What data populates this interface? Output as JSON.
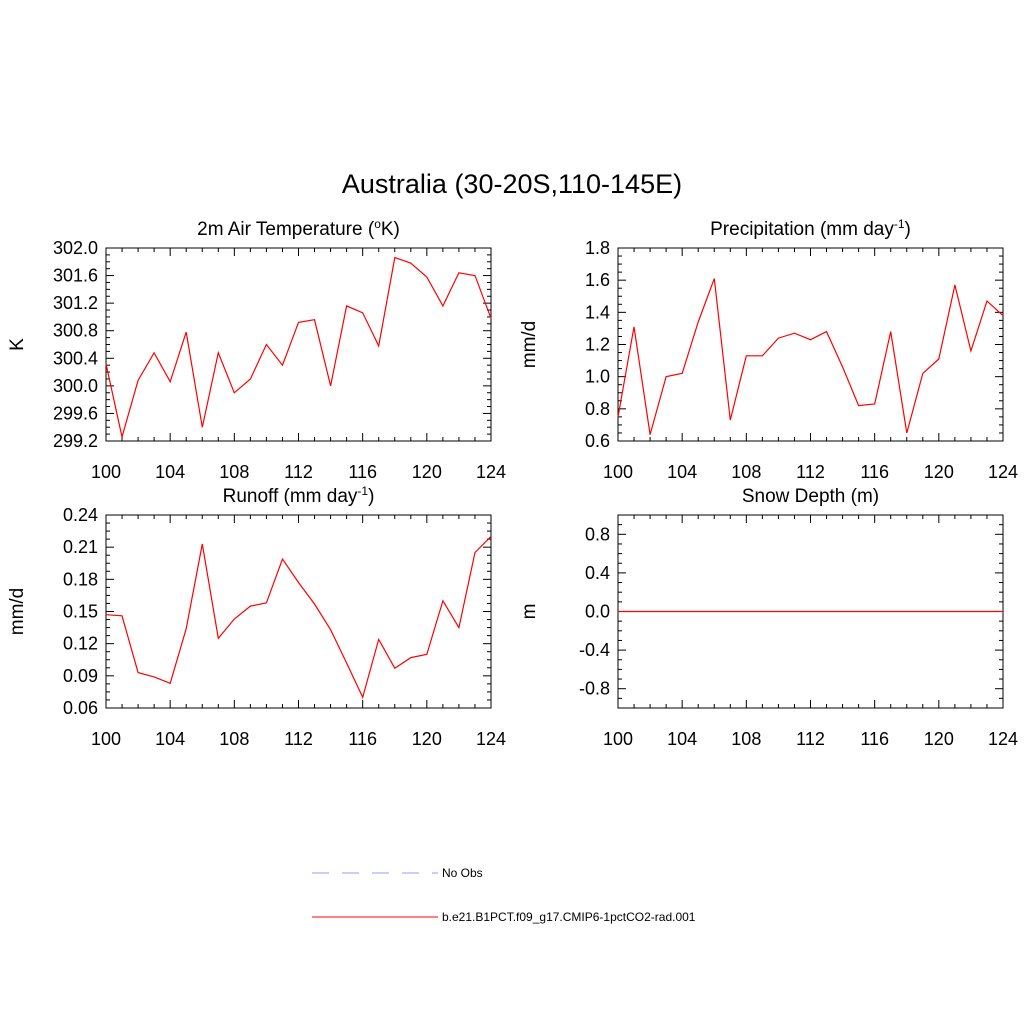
{
  "title": "Australia (30-20S,110-145E)",
  "chart_data": [
    {
      "type": "line",
      "title": "2m Air Temperature (",
      "title_sup": "o",
      "title_suffix": "K)",
      "ylabel": "K",
      "xlim": [
        100,
        124
      ],
      "ylim": [
        299.2,
        302.0
      ],
      "xticks": [
        100,
        104,
        108,
        112,
        116,
        120,
        124
      ],
      "yticks": [
        "299.2",
        "299.6",
        "300.0",
        "300.4",
        "300.8",
        "301.2",
        "301.6",
        "302.0"
      ],
      "yticks_values": [
        299.2,
        299.6,
        300.0,
        300.4,
        300.8,
        301.2,
        301.6,
        302.0
      ],
      "series": [
        {
          "color": "#ff0000",
          "x": [
            100,
            101,
            102,
            103,
            104,
            105,
            106,
            107,
            108,
            109,
            110,
            111,
            112,
            113,
            114,
            115,
            116,
            117,
            118,
            119,
            120,
            121,
            122,
            123,
            124
          ],
          "y": [
            300.32,
            299.26,
            300.08,
            300.48,
            300.06,
            300.78,
            299.4,
            300.48,
            299.9,
            300.1,
            300.6,
            300.3,
            300.92,
            300.96,
            300.0,
            301.16,
            301.06,
            300.58,
            301.86,
            301.78,
            301.58,
            301.16,
            301.64,
            301.6,
            300.98
          ]
        }
      ]
    },
    {
      "type": "line",
      "title": "Precipitation (mm day",
      "title_sup": "-1",
      "title_suffix": ")",
      "ylabel": "mm/d",
      "xlim": [
        100,
        124
      ],
      "ylim": [
        0.6,
        1.8
      ],
      "xticks": [
        100,
        104,
        108,
        112,
        116,
        120,
        124
      ],
      "yticks": [
        "0.6",
        "0.8",
        "1.0",
        "1.2",
        "1.4",
        "1.6",
        "1.8"
      ],
      "yticks_values": [
        0.6,
        0.8,
        1.0,
        1.2,
        1.4,
        1.6,
        1.8
      ],
      "series": [
        {
          "color": "#ff0000",
          "x": [
            100,
            101,
            102,
            103,
            104,
            105,
            106,
            107,
            108,
            109,
            110,
            111,
            112,
            113,
            114,
            115,
            116,
            117,
            118,
            119,
            120,
            121,
            122,
            123,
            124
          ],
          "y": [
            0.75,
            1.31,
            0.64,
            1.0,
            1.02,
            1.34,
            1.61,
            0.73,
            1.13,
            1.13,
            1.24,
            1.27,
            1.23,
            1.28,
            1.06,
            0.82,
            0.83,
            1.28,
            0.65,
            1.02,
            1.11,
            1.57,
            1.16,
            1.47,
            1.38
          ]
        }
      ]
    },
    {
      "type": "line",
      "title": "Runoff (mm day",
      "title_sup": "-1",
      "title_suffix": ")",
      "ylabel": "mm/d",
      "xlim": [
        100,
        124
      ],
      "ylim": [
        0.06,
        0.24
      ],
      "xticks": [
        100,
        104,
        108,
        112,
        116,
        120,
        124
      ],
      "yticks": [
        "0.06",
        "0.09",
        "0.12",
        "0.15",
        "0.18",
        "0.21",
        "0.24"
      ],
      "yticks_values": [
        0.06,
        0.09,
        0.12,
        0.15,
        0.18,
        0.21,
        0.24
      ],
      "series": [
        {
          "color": "#ff0000",
          "x": [
            100,
            101,
            102,
            103,
            104,
            105,
            106,
            107,
            108,
            109,
            110,
            111,
            112,
            113,
            114,
            115,
            116,
            117,
            118,
            119,
            120,
            121,
            122,
            123,
            124
          ],
          "y": [
            0.147,
            0.146,
            0.093,
            0.089,
            0.083,
            0.134,
            0.213,
            0.125,
            0.143,
            0.155,
            0.158,
            0.199,
            0.177,
            0.157,
            0.133,
            0.102,
            0.07,
            0.124,
            0.097,
            0.107,
            0.11,
            0.16,
            0.135,
            0.205,
            0.22
          ]
        }
      ]
    },
    {
      "type": "line",
      "title": "Snow Depth (m)",
      "title_sup": "",
      "title_suffix": "",
      "ylabel": "m",
      "xlim": [
        100,
        124
      ],
      "ylim": [
        -1.0,
        1.0
      ],
      "xticks": [
        100,
        104,
        108,
        112,
        116,
        120,
        124
      ],
      "yticks": [
        "-0.8",
        "-0.4",
        "0.0",
        "0.4",
        "0.8"
      ],
      "yticks_values": [
        -0.8,
        -0.4,
        0.0,
        0.4,
        0.8
      ],
      "series": [
        {
          "color": "#ff0000",
          "x": [
            100,
            124
          ],
          "y": [
            0,
            0
          ]
        }
      ]
    }
  ],
  "legend": [
    {
      "label": "No Obs",
      "color": "#9999ff",
      "style": "dashed"
    },
    {
      "label": "b.e21.B1PCT.f09_g17.CMIP6-1pctCO2-rad.001",
      "color": "#ff0000",
      "style": "solid"
    }
  ]
}
